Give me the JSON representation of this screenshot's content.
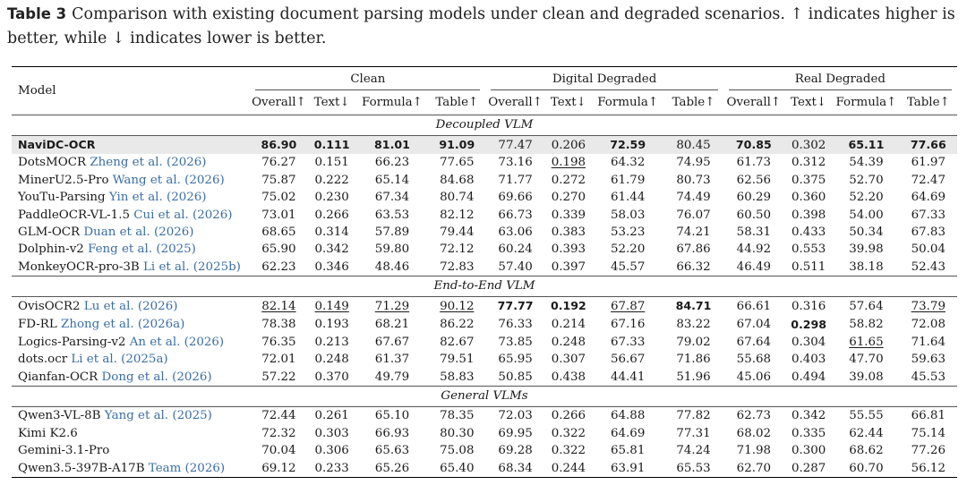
{
  "caption": {
    "label": "Table 3",
    "text": "Comparison with existing document parsing models under clean and degraded scenarios. ↑ indicates higher is better, while ↓ indicates lower is better."
  },
  "header": {
    "model_label": "Model",
    "groups": [
      "Clean",
      "Digital Degraded",
      "Real Degraded"
    ],
    "metrics": [
      "Overall↑",
      "Text↓",
      "Formula↑",
      "Table↑"
    ]
  },
  "sections": [
    {
      "title": "Decoupled VLM",
      "rows": [
        {
          "name": "NaviDC-OCR",
          "cite": "",
          "name_bold": true,
          "highlight": true,
          "values": [
            "86.90",
            "0.111",
            "81.01",
            "91.09",
            "77.47",
            "0.206",
            "72.59",
            "80.45",
            "70.85",
            "0.302",
            "65.11",
            "77.66"
          ],
          "bold": [
            0,
            1,
            2,
            3,
            6,
            8,
            10,
            11
          ],
          "underline": []
        },
        {
          "name": "DotsMOCR",
          "cite": "Zheng et al. (2026)",
          "values": [
            "76.27",
            "0.151",
            "66.23",
            "77.65",
            "73.16",
            "0.198",
            "64.32",
            "74.95",
            "61.73",
            "0.312",
            "54.39",
            "61.97"
          ],
          "bold": [],
          "underline": [
            5
          ]
        },
        {
          "name": "MinerU2.5-Pro",
          "cite": "Wang et al. (2026)",
          "values": [
            "75.87",
            "0.222",
            "65.14",
            "84.68",
            "71.77",
            "0.272",
            "61.79",
            "80.73",
            "62.56",
            "0.375",
            "52.70",
            "72.47"
          ],
          "bold": [],
          "underline": []
        },
        {
          "name": "YouTu-Parsing",
          "cite": "Yin et al. (2026)",
          "values": [
            "75.02",
            "0.230",
            "67.34",
            "80.74",
            "69.66",
            "0.270",
            "61.44",
            "74.49",
            "60.29",
            "0.360",
            "52.20",
            "64.69"
          ],
          "bold": [],
          "underline": []
        },
        {
          "name": "PaddleOCR-VL-1.5",
          "cite": "Cui et al. (2026)",
          "values": [
            "73.01",
            "0.266",
            "63.53",
            "82.12",
            "66.73",
            "0.339",
            "58.03",
            "76.07",
            "60.50",
            "0.398",
            "54.00",
            "67.33"
          ],
          "bold": [],
          "underline": []
        },
        {
          "name": "GLM-OCR",
          "cite": "Duan et al. (2026)",
          "values": [
            "68.65",
            "0.314",
            "57.89",
            "79.44",
            "63.06",
            "0.383",
            "53.23",
            "74.21",
            "58.31",
            "0.433",
            "50.34",
            "67.83"
          ],
          "bold": [],
          "underline": []
        },
        {
          "name": "Dolphin-v2",
          "cite": "Feng et al. (2025)",
          "values": [
            "65.90",
            "0.342",
            "59.80",
            "72.12",
            "60.24",
            "0.393",
            "52.20",
            "67.86",
            "44.92",
            "0.553",
            "39.98",
            "50.04"
          ],
          "bold": [],
          "underline": []
        },
        {
          "name": "MonkeyOCR-pro-3B",
          "cite": "Li et al. (2025b)",
          "values": [
            "62.23",
            "0.346",
            "48.46",
            "72.83",
            "57.40",
            "0.397",
            "45.57",
            "66.32",
            "46.49",
            "0.511",
            "38.18",
            "52.43"
          ],
          "bold": [],
          "underline": []
        }
      ]
    },
    {
      "title": "End-to-End VLM",
      "rows": [
        {
          "name": "OvisOCR2",
          "cite": "Lu et al. (2026)",
          "values": [
            "82.14",
            "0.149",
            "71.29",
            "90.12",
            "77.77",
            "0.192",
            "67.87",
            "84.71",
            "66.61",
            "0.316",
            "57.64",
            "73.79"
          ],
          "bold": [
            4,
            5,
            7
          ],
          "underline": [
            0,
            1,
            2,
            3,
            6,
            11
          ]
        },
        {
          "name": "FD-RL",
          "cite": "Zhong et al. (2026a)",
          "values": [
            "78.38",
            "0.193",
            "68.21",
            "86.22",
            "76.33",
            "0.214",
            "67.16",
            "83.22",
            "67.04",
            "0.298",
            "58.82",
            "72.08"
          ],
          "bold": [
            9
          ],
          "underline": []
        },
        {
          "name": "Logics-Parsing-v2",
          "cite": "An et al. (2026)",
          "values": [
            "76.35",
            "0.213",
            "67.67",
            "82.67",
            "73.85",
            "0.248",
            "67.33",
            "79.02",
            "67.64",
            "0.304",
            "61.65",
            "71.64"
          ],
          "bold": [],
          "underline": [
            10
          ]
        },
        {
          "name": "dots.ocr",
          "cite": "Li et al. (2025a)",
          "values": [
            "72.01",
            "0.248",
            "61.37",
            "79.51",
            "65.95",
            "0.307",
            "56.67",
            "71.86",
            "55.68",
            "0.403",
            "47.70",
            "59.63"
          ],
          "bold": [],
          "underline": []
        },
        {
          "name": "Qianfan-OCR",
          "cite": "Dong et al. (2026)",
          "values": [
            "57.22",
            "0.370",
            "49.79",
            "58.83",
            "50.85",
            "0.438",
            "44.41",
            "51.96",
            "45.06",
            "0.494",
            "39.08",
            "45.53"
          ],
          "bold": [],
          "underline": []
        }
      ]
    },
    {
      "title": "General VLMs",
      "rows": [
        {
          "name": "Qwen3-VL-8B",
          "cite": "Yang et al. (2025)",
          "values": [
            "72.44",
            "0.261",
            "65.10",
            "78.35",
            "72.03",
            "0.266",
            "64.88",
            "77.82",
            "62.73",
            "0.342",
            "55.55",
            "66.81"
          ],
          "bold": [],
          "underline": []
        },
        {
          "name": "Kimi K2.6",
          "cite": "",
          "values": [
            "72.32",
            "0.303",
            "66.93",
            "80.30",
            "69.95",
            "0.322",
            "64.69",
            "77.31",
            "68.02",
            "0.335",
            "62.44",
            "75.14"
          ],
          "bold": [],
          "underline": []
        },
        {
          "name": "Gemini-3.1-Pro",
          "cite": "",
          "values": [
            "70.04",
            "0.306",
            "65.63",
            "75.08",
            "69.28",
            "0.322",
            "65.81",
            "74.24",
            "71.98",
            "0.300",
            "68.62",
            "77.26"
          ],
          "bold": [],
          "underline": []
        },
        {
          "name": "Qwen3.5-397B-A17B",
          "cite": "Team (2026)",
          "values": [
            "69.12",
            "0.233",
            "65.26",
            "65.40",
            "68.34",
            "0.244",
            "63.91",
            "65.53",
            "62.70",
            "0.287",
            "60.70",
            "56.12"
          ],
          "bold": [],
          "underline": []
        }
      ]
    }
  ]
}
